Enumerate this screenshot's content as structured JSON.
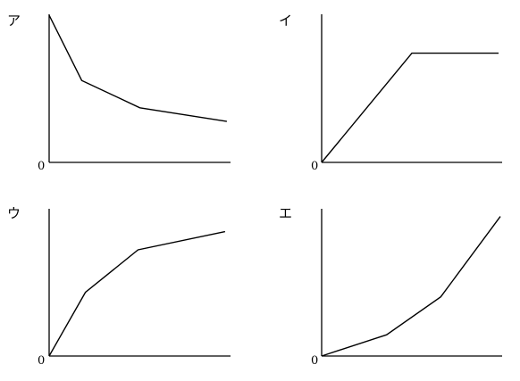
{
  "chart_data": [
    {
      "type": "line",
      "panel_label": "ア",
      "origin_label": "0",
      "title": "",
      "xlabel": "",
      "ylabel": "",
      "xlim": [
        0,
        10
      ],
      "ylim": [
        0,
        10
      ],
      "grid": false,
      "series": [
        {
          "x": [
            0,
            1.8,
            5.0,
            9.8
          ],
          "y": [
            9.7,
            5.4,
            3.6,
            2.7
          ]
        }
      ]
    },
    {
      "type": "line",
      "panel_label": "イ",
      "origin_label": "0",
      "title": "",
      "xlabel": "",
      "ylabel": "",
      "xlim": [
        0,
        10
      ],
      "ylim": [
        0,
        10
      ],
      "grid": false,
      "series": [
        {
          "x": [
            0,
            5.0,
            9.8
          ],
          "y": [
            0,
            7.2,
            7.2
          ]
        }
      ]
    },
    {
      "type": "line",
      "panel_label": "ウ",
      "origin_label": "0",
      "title": "",
      "xlabel": "",
      "ylabel": "",
      "xlim": [
        0,
        10
      ],
      "ylim": [
        0,
        10
      ],
      "grid": false,
      "series": [
        {
          "x": [
            0,
            2.0,
            4.9,
            9.7
          ],
          "y": [
            0,
            4.2,
            7.0,
            8.2
          ]
        }
      ]
    },
    {
      "type": "line",
      "panel_label": "エ",
      "origin_label": "0",
      "title": "",
      "xlabel": "",
      "ylabel": "",
      "xlim": [
        0,
        10
      ],
      "ylim": [
        0,
        10
      ],
      "grid": false,
      "series": [
        {
          "x": [
            0,
            3.6,
            6.6,
            9.9
          ],
          "y": [
            0,
            1.4,
            3.9,
            9.2
          ]
        }
      ]
    }
  ]
}
